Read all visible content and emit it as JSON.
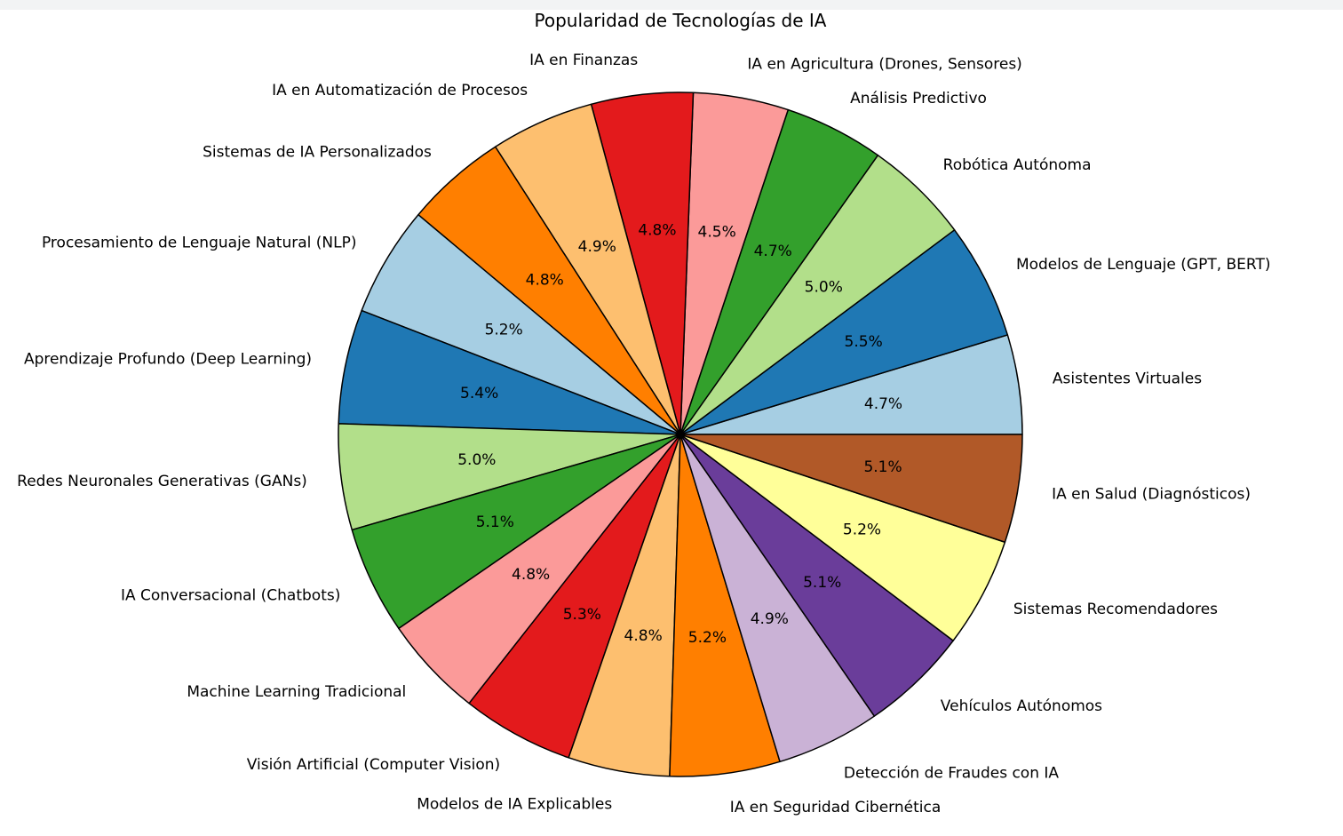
{
  "chart_data": {
    "type": "pie",
    "title": "Popularidad de Tecnologías de IA",
    "slices": [
      {
        "label": "Asistentes Virtuales",
        "value": 4.7,
        "pct_label": "4.7%",
        "color": "#a6cee3"
      },
      {
        "label": "Modelos de Lenguaje (GPT, BERT)",
        "value": 5.5,
        "pct_label": "5.5%",
        "color": "#1f78b4"
      },
      {
        "label": "Robótica Autónoma",
        "value": 5.0,
        "pct_label": "5.0%",
        "color": "#b2df8a"
      },
      {
        "label": "Análisis Predictivo",
        "value": 4.7,
        "pct_label": "4.7%",
        "color": "#33a02c"
      },
      {
        "label": "IA en Agricultura (Drones, Sensores)",
        "value": 4.5,
        "pct_label": "4.5%",
        "color": "#fb9a99"
      },
      {
        "label": "IA en Finanzas",
        "value": 4.8,
        "pct_label": "4.8%",
        "color": "#e31a1c"
      },
      {
        "label": "IA en Automatización de Procesos",
        "value": 4.9,
        "pct_label": "4.9%",
        "color": "#fdbf6f"
      },
      {
        "label": "Sistemas de IA Personalizados",
        "value": 4.8,
        "pct_label": "4.8%",
        "color": "#ff7f00"
      },
      {
        "label": "Procesamiento de Lenguaje Natural (NLP)",
        "value": 5.2,
        "pct_label": "5.2%",
        "color": "#a6cee3"
      },
      {
        "label": "Aprendizaje Profundo (Deep Learning)",
        "value": 5.4,
        "pct_label": "5.4%",
        "color": "#1f78b4"
      },
      {
        "label": "Redes Neuronales Generativas (GANs)",
        "value": 5.0,
        "pct_label": "5.0%",
        "color": "#b2df8a"
      },
      {
        "label": "IA Conversacional (Chatbots)",
        "value": 5.1,
        "pct_label": "5.1%",
        "color": "#33a02c"
      },
      {
        "label": "Machine Learning Tradicional",
        "value": 4.8,
        "pct_label": "4.8%",
        "color": "#fb9a99"
      },
      {
        "label": "Visión Artificial (Computer Vision)",
        "value": 5.3,
        "pct_label": "5.3%",
        "color": "#e31a1c"
      },
      {
        "label": "Modelos de IA Explicables",
        "value": 4.8,
        "pct_label": "4.8%",
        "color": "#fdbf6f"
      },
      {
        "label": "IA en Seguridad Cibernética",
        "value": 5.2,
        "pct_label": "5.2%",
        "color": "#ff7f00"
      },
      {
        "label": "Detección de Fraudes con IA",
        "value": 4.9,
        "pct_label": "4.9%",
        "color": "#cab2d6"
      },
      {
        "label": "Vehículos Autónomos",
        "value": 5.1,
        "pct_label": "5.1%",
        "color": "#6a3d9a"
      },
      {
        "label": "Sistemas Recomendadores",
        "value": 5.2,
        "pct_label": "5.2%",
        "color": "#ffff99"
      },
      {
        "label": "IA en Salud (Diagnósticos)",
        "value": 5.1,
        "pct_label": "5.1%",
        "color": "#b15928"
      }
    ],
    "start_angle_deg": 0,
    "direction": "counterclockwise",
    "edge_color": "#000000",
    "legend": "none"
  }
}
